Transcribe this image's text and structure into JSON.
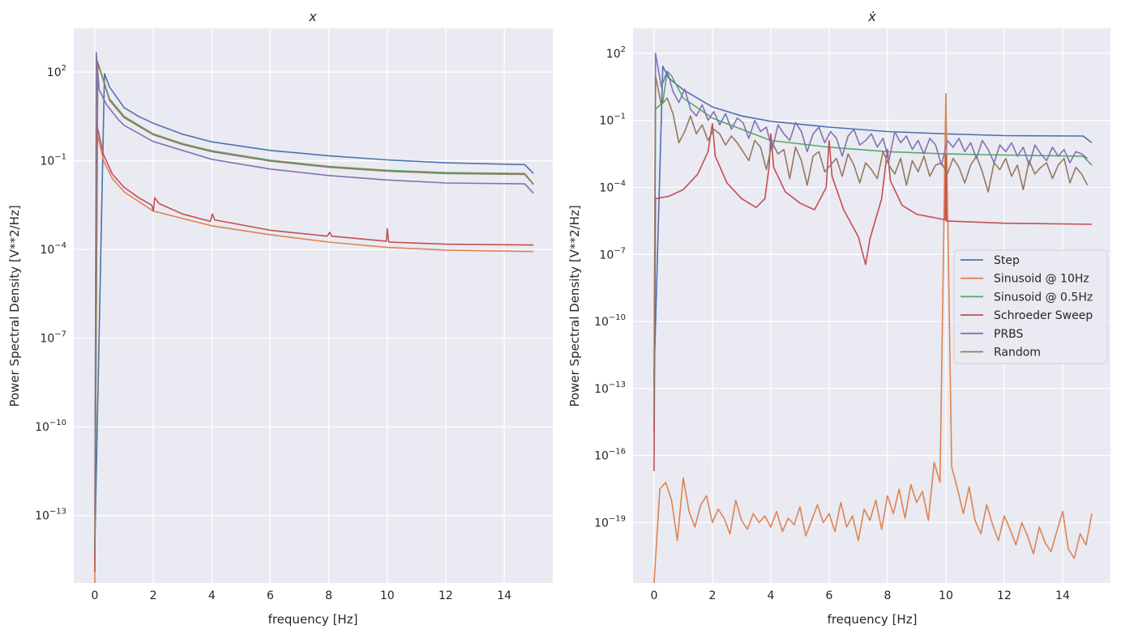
{
  "chart_data": [
    {
      "type": "line",
      "title": "x",
      "xlabel": "frequency [Hz]",
      "ylabel": "Power Spectral Density [V**2/Hz]",
      "yscale": "log",
      "y_values_are": "log10(PSD)",
      "xlim": [
        -0.72,
        15.66
      ],
      "ylim_log10": [
        -15.28,
        3.48
      ],
      "x_ticks": [
        "0",
        "2",
        "4",
        "6",
        "8",
        "10",
        "12",
        "14"
      ],
      "y_tick_exponents": [
        "2",
        "−1",
        "−4",
        "−7",
        "−10",
        "−13"
      ],
      "grid": true,
      "series": [
        {
          "name": "Step",
          "color": "#4c72b0",
          "points": [
            [
              0,
              -14
            ],
            [
              0.33,
              1.95
            ],
            [
              0.5,
              1.5
            ],
            [
              1,
              0.8
            ],
            [
              1.5,
              0.5
            ],
            [
              2,
              0.27
            ],
            [
              3,
              -0.1
            ],
            [
              4,
              -0.36
            ],
            [
              6,
              -0.65
            ],
            [
              8,
              -0.83
            ],
            [
              10,
              -0.97
            ],
            [
              12,
              -1.07
            ],
            [
              14.7,
              -1.13
            ],
            [
              15,
              -1.43
            ]
          ]
        },
        {
          "name": "Sinusoid @ 10Hz",
          "color": "#dd8452",
          "points": [
            [
              0,
              -15.3
            ],
            [
              0.05,
              0.05
            ],
            [
              0.3,
              -1.0
            ],
            [
              0.6,
              -1.6
            ],
            [
              1,
              -2.05
            ],
            [
              2,
              -2.7
            ],
            [
              4,
              -3.2
            ],
            [
              6,
              -3.5
            ],
            [
              8,
              -3.75
            ],
            [
              10,
              -3.93
            ],
            [
              12,
              -4.02
            ],
            [
              15,
              -4.07
            ]
          ]
        },
        {
          "name": "Sinusoid @ 0.5Hz",
          "color": "#55a868",
          "points": [
            [
              0,
              -14.5
            ],
            [
              0.1,
              2.3
            ],
            [
              0.5,
              1.1
            ],
            [
              1,
              0.5
            ],
            [
              2,
              -0.09
            ],
            [
              3,
              -0.42
            ],
            [
              4,
              -0.66
            ],
            [
              6,
              -0.98
            ],
            [
              8,
              -1.19
            ],
            [
              10,
              -1.32
            ],
            [
              12,
              -1.4
            ],
            [
              14.7,
              -1.43
            ],
            [
              15,
              -1.8
            ]
          ]
        },
        {
          "name": "Schroeder Sweep",
          "color": "#c44e52",
          "points": [
            [
              0,
              -14.9
            ],
            [
              0.05,
              0.3
            ],
            [
              0.3,
              -0.8
            ],
            [
              0.6,
              -1.45
            ],
            [
              1,
              -1.9
            ],
            [
              1.5,
              -2.25
            ],
            [
              1.95,
              -2.5
            ],
            [
              2.0,
              -2.7
            ],
            [
              2.05,
              -2.25
            ],
            [
              2.2,
              -2.45
            ],
            [
              3,
              -2.8
            ],
            [
              3.95,
              -3.05
            ],
            [
              4.02,
              -2.8
            ],
            [
              4.1,
              -3.0
            ],
            [
              6,
              -3.35
            ],
            [
              7.95,
              -3.55
            ],
            [
              8.03,
              -3.42
            ],
            [
              8.1,
              -3.55
            ],
            [
              9.97,
              -3.72
            ],
            [
              10.0,
              -3.3
            ],
            [
              10.05,
              -3.75
            ],
            [
              12,
              -3.82
            ],
            [
              15,
              -3.85
            ]
          ]
        },
        {
          "name": "PRBS",
          "color": "#8172b3",
          "points": [
            [
              0,
              -13
            ],
            [
              0.05,
              2.66
            ],
            [
              0.15,
              1.4
            ],
            [
              0.4,
              0.9
            ],
            [
              0.8,
              0.4
            ],
            [
              1,
              0.2
            ],
            [
              2,
              -0.35
            ],
            [
              4,
              -0.95
            ],
            [
              6,
              -1.28
            ],
            [
              8,
              -1.5
            ],
            [
              10,
              -1.65
            ],
            [
              12,
              -1.75
            ],
            [
              14.7,
              -1.78
            ],
            [
              15,
              -2.1
            ]
          ]
        },
        {
          "name": "Random",
          "color": "#937860",
          "points": [
            [
              0,
              -14.2
            ],
            [
              0.1,
              2.35
            ],
            [
              0.5,
              1.05
            ],
            [
              1,
              0.46
            ],
            [
              2,
              -0.12
            ],
            [
              3,
              -0.45
            ],
            [
              4,
              -0.69
            ],
            [
              6,
              -1.01
            ],
            [
              8,
              -1.22
            ],
            [
              10,
              -1.35
            ],
            [
              12,
              -1.43
            ],
            [
              14.7,
              -1.46
            ],
            [
              15,
              -1.8
            ]
          ]
        }
      ]
    },
    {
      "type": "line",
      "title": "ẋ",
      "xlabel": "frequency [Hz]",
      "ylabel": "Power Spectral Density [V**2/Hz]",
      "yscale": "log",
      "y_values_are": "log10(PSD)",
      "xlim": [
        -0.72,
        15.64
      ],
      "ylim_log10": [
        -21.7,
        3.12
      ],
      "x_ticks": [
        "0",
        "2",
        "4",
        "6",
        "8",
        "10",
        "12",
        "14"
      ],
      "y_tick_exponents": [
        "2",
        "−1",
        "−4",
        "−7",
        "−10",
        "−13",
        "−16",
        "−19"
      ],
      "grid": true,
      "legend": {
        "placement": "center-right",
        "entries": [
          "Step",
          "Sinusoid @ 10Hz",
          "Sinusoid @ 0.5Hz",
          "Schroeder Sweep",
          "PRBS",
          "Random"
        ]
      },
      "series": [
        {
          "name": "Step",
          "color": "#4c72b0",
          "points": [
            [
              0,
              -12.5
            ],
            [
              0.3,
              1.42
            ],
            [
              0.5,
              0.9
            ],
            [
              1,
              0.37
            ],
            [
              2,
              -0.4
            ],
            [
              3,
              -0.8
            ],
            [
              4,
              -1.04
            ],
            [
              6,
              -1.3
            ],
            [
              8,
              -1.5
            ],
            [
              10,
              -1.6
            ],
            [
              12,
              -1.68
            ],
            [
              14.7,
              -1.7
            ],
            [
              15,
              -2.0
            ]
          ]
        },
        {
          "name": "Sinusoid @ 10Hz",
          "color": "#dd8452",
          "origin_log10": -21.7,
          "x_start": 0.2,
          "x_step": 0.2,
          "y_log10": [
            -17.5,
            -17.2,
            -18.0,
            -19.8,
            -17.0,
            -18.5,
            -19.2,
            -18.2,
            -17.8,
            -19.0,
            -18.4,
            -18.8,
            -19.5,
            -18.0,
            -18.9,
            -19.3,
            -18.6,
            -19.0,
            -18.7,
            -19.2,
            -18.5,
            -19.4,
            -18.8,
            -19.1,
            -18.3,
            -19.6,
            -18.9,
            -18.2,
            -19.0,
            -18.6,
            -19.4,
            -18.1,
            -19.2,
            -18.7,
            -19.8,
            -18.4,
            -18.9,
            -18.0,
            -19.3,
            -17.8,
            -18.6,
            -17.5,
            -18.8,
            -17.3,
            -18.1,
            -17.6,
            -18.9,
            -16.3,
            -17.2,
            0.2,
            -16.5,
            -17.5,
            -18.6,
            -17.4,
            -18.9,
            -19.5,
            -18.2,
            -19.1,
            -19.8,
            -18.7,
            -19.3,
            -20.0,
            -19.0,
            -19.6,
            -20.4,
            -19.2,
            -19.9,
            -20.3,
            -19.4,
            -18.5,
            -20.2,
            -20.6,
            -19.5,
            -20.0,
            -18.6
          ]
        },
        {
          "name": "Sinusoid @ 0.5Hz",
          "color": "#55a868",
          "points": [
            [
              0,
              -15
            ],
            [
              0.05,
              -0.5
            ],
            [
              0.3,
              -0.2
            ],
            [
              0.45,
              1.2
            ],
            [
              0.6,
              1.0
            ],
            [
              1,
              0.0
            ],
            [
              2,
              -0.9
            ],
            [
              4,
              -1.9
            ],
            [
              6,
              -2.2
            ],
            [
              8,
              -2.4
            ],
            [
              10,
              -2.5
            ],
            [
              12,
              -2.55
            ],
            [
              14.7,
              -2.6
            ],
            [
              15,
              -3.0
            ]
          ]
        },
        {
          "name": "Schroeder Sweep",
          "color": "#c44e52",
          "points": [
            [
              0,
              -16.7
            ],
            [
              0.05,
              -4.5
            ],
            [
              0.5,
              -4.4
            ],
            [
              1,
              -4.1
            ],
            [
              1.5,
              -3.4
            ],
            [
              1.85,
              -2.4
            ],
            [
              2,
              -1.15
            ],
            [
              2.1,
              -2.6
            ],
            [
              2.5,
              -3.8
            ],
            [
              3,
              -4.5
            ],
            [
              3.5,
              -4.9
            ],
            [
              3.8,
              -4.5
            ],
            [
              3.95,
              -3.0
            ],
            [
              4,
              -1.6
            ],
            [
              4.1,
              -3.1
            ],
            [
              4.5,
              -4.2
            ],
            [
              5,
              -4.7
            ],
            [
              5.5,
              -5.0
            ],
            [
              5.9,
              -4.0
            ],
            [
              6,
              -1.9
            ],
            [
              6.1,
              -3.5
            ],
            [
              6.5,
              -5.0
            ],
            [
              7,
              -6.2
            ],
            [
              7.25,
              -7.45
            ],
            [
              7.4,
              -6.3
            ],
            [
              7.8,
              -4.5
            ],
            [
              8,
              -2.3
            ],
            [
              8.1,
              -3.7
            ],
            [
              8.5,
              -4.8
            ],
            [
              9,
              -5.2
            ],
            [
              9.98,
              -5.45
            ],
            [
              10,
              -2.5
            ],
            [
              10.02,
              -5.5
            ],
            [
              12,
              -5.6
            ],
            [
              15,
              -5.65
            ]
          ]
        },
        {
          "name": "PRBS",
          "color": "#8172b3",
          "origin_log10": -13,
          "x_start": 0.05,
          "x_step": 0.2,
          "y_log10": [
            2.0,
            0.5,
            1.2,
            0.3,
            -0.2,
            0.4,
            -0.5,
            -0.8,
            -0.3,
            -1.0,
            -0.6,
            -1.2,
            -0.7,
            -1.4,
            -0.9,
            -1.1,
            -1.8,
            -1.0,
            -1.5,
            -1.3,
            -2.3,
            -1.2,
            -1.6,
            -1.9,
            -1.1,
            -1.5,
            -2.4,
            -1.6,
            -1.3,
            -2.0,
            -1.5,
            -1.8,
            -2.6,
            -1.7,
            -1.4,
            -2.1,
            -1.9,
            -1.6,
            -2.2,
            -1.8,
            -2.8,
            -1.5,
            -2.0,
            -1.7,
            -2.3,
            -1.9,
            -2.5,
            -1.8,
            -2.1,
            -3.0,
            -1.9,
            -2.2,
            -1.8,
            -2.4,
            -2.0,
            -2.7,
            -1.9,
            -2.3,
            -2.9,
            -2.1,
            -2.4,
            -2.0,
            -2.6,
            -2.2,
            -3.0,
            -2.1,
            -2.5,
            -2.8,
            -2.2,
            -2.6,
            -2.3,
            -2.9,
            -2.4,
            -2.5,
            -2.7
          ]
        },
        {
          "name": "Random",
          "color": "#937860",
          "origin_log10": -14.5,
          "x_start": 0.05,
          "x_step": 0.2,
          "y_log10": [
            1.0,
            -0.3,
            0.0,
            -0.7,
            -2.0,
            -1.5,
            -0.8,
            -1.6,
            -1.2,
            -1.9,
            -1.4,
            -1.6,
            -2.1,
            -1.7,
            -2.0,
            -2.4,
            -2.8,
            -1.9,
            -2.2,
            -3.2,
            -2.0,
            -2.5,
            -2.3,
            -3.6,
            -2.2,
            -2.8,
            -3.9,
            -2.6,
            -2.4,
            -3.3,
            -3.0,
            -2.7,
            -3.5,
            -2.5,
            -3.0,
            -3.8,
            -2.9,
            -3.2,
            -3.6,
            -2.4,
            -3.0,
            -3.4,
            -2.7,
            -3.9,
            -2.8,
            -3.3,
            -2.6,
            -3.5,
            -3.0,
            -2.9,
            -3.4,
            -2.7,
            -3.1,
            -3.8,
            -3.0,
            -2.6,
            -3.3,
            -4.2,
            -2.9,
            -3.2,
            -2.7,
            -3.5,
            -3.0,
            -4.1,
            -2.8,
            -3.4,
            -3.1,
            -2.9,
            -3.6,
            -3.0,
            -2.7,
            -3.8,
            -3.1,
            -3.4,
            -3.9
          ]
        }
      ]
    }
  ]
}
